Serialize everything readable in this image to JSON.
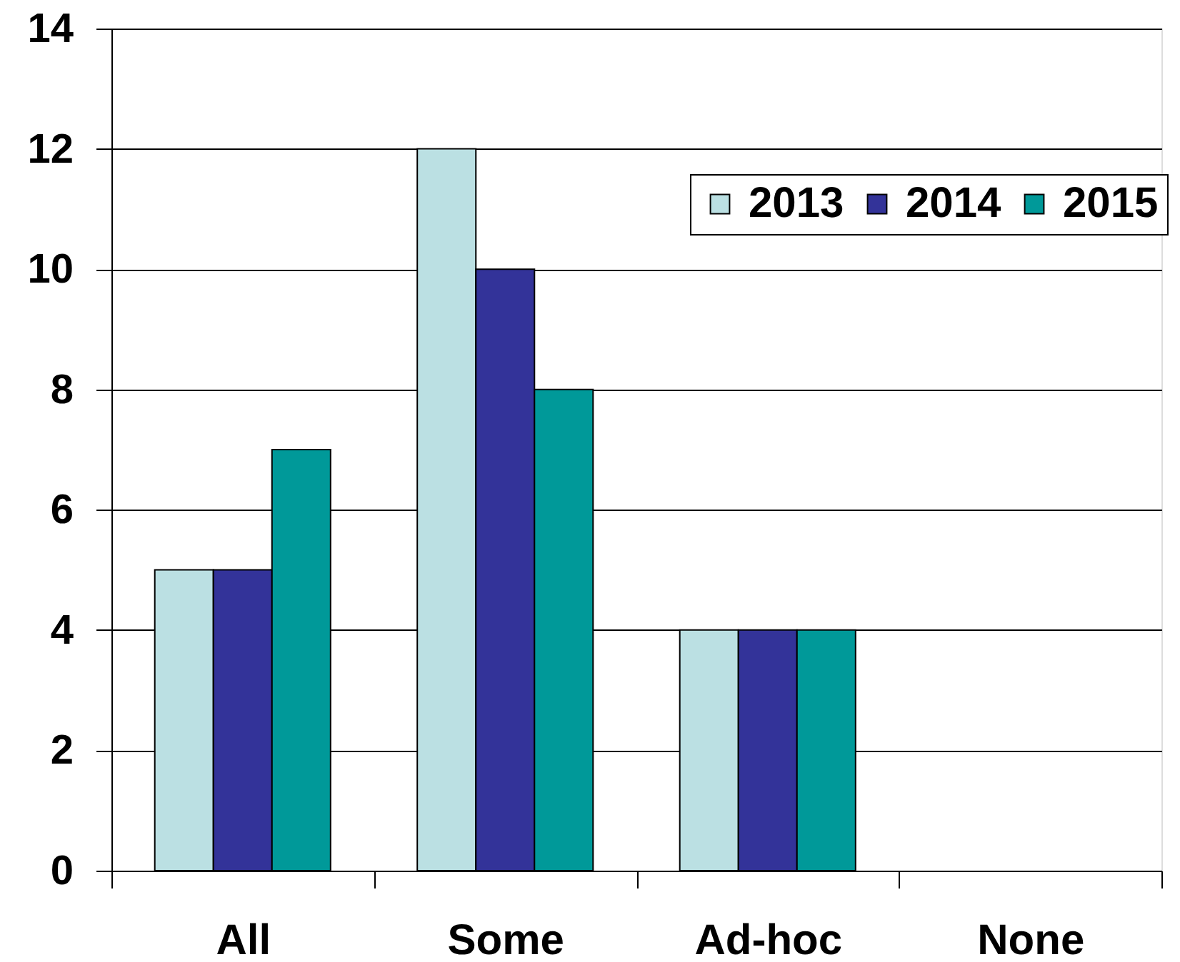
{
  "chart_data": {
    "type": "bar",
    "categories": [
      "All",
      "Some",
      "Ad-hoc",
      "None"
    ],
    "series": [
      {
        "name": "2013",
        "color": "#bbe0e3",
        "values": [
          5,
          12,
          4,
          null
        ]
      },
      {
        "name": "2014",
        "color": "#333399",
        "values": [
          5,
          10,
          4,
          null
        ]
      },
      {
        "name": "2015",
        "color": "#009999",
        "values": [
          7,
          8,
          4,
          null
        ]
      }
    ],
    "ylim": [
      0,
      14
    ],
    "yticks": [
      0,
      2,
      4,
      6,
      8,
      10,
      12,
      14
    ],
    "grid": "y",
    "legend": "top right"
  }
}
